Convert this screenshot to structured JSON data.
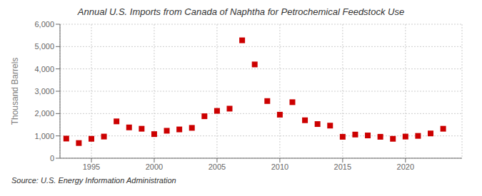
{
  "chart_data": {
    "type": "scatter",
    "title": "Annual U.S. Imports from Canada of Naphtha for Petrochemical Feedstock Use",
    "ylabel": "Thousand Barrels",
    "annotation": "Source: U.S. Energy Information Administration",
    "x": [
      1993,
      1994,
      1995,
      1996,
      1997,
      1998,
      1999,
      2000,
      2001,
      2002,
      2003,
      2004,
      2005,
      2006,
      2007,
      2008,
      2009,
      2010,
      2011,
      2012,
      2013,
      2014,
      2015,
      2016,
      2017,
      2018,
      2019,
      2020,
      2021,
      2022,
      2023
    ],
    "values": [
      880,
      680,
      870,
      970,
      1650,
      1380,
      1320,
      1080,
      1230,
      1290,
      1360,
      1880,
      2120,
      2220,
      5280,
      4200,
      2560,
      1950,
      2510,
      1700,
      1530,
      1460,
      960,
      1060,
      1020,
      960,
      870,
      970,
      1000,
      1110,
      1320
    ],
    "color": "#cc0000",
    "marker": "square",
    "xlim": [
      1992.5,
      2024.5
    ],
    "xticks": [
      1995,
      2000,
      2005,
      2010,
      2015,
      2020
    ],
    "ylim": [
      0,
      6000
    ],
    "yticks": [
      0,
      {
        "value": 1000,
        "label": "1,000"
      },
      {
        "value": 2000,
        "label": "2,000"
      },
      {
        "value": 3000,
        "label": "3,000"
      },
      {
        "value": 4000,
        "label": "4,000"
      },
      {
        "value": 5000,
        "label": "5,000"
      },
      {
        "value": 6000,
        "label": "6,000"
      }
    ],
    "grid": true
  }
}
